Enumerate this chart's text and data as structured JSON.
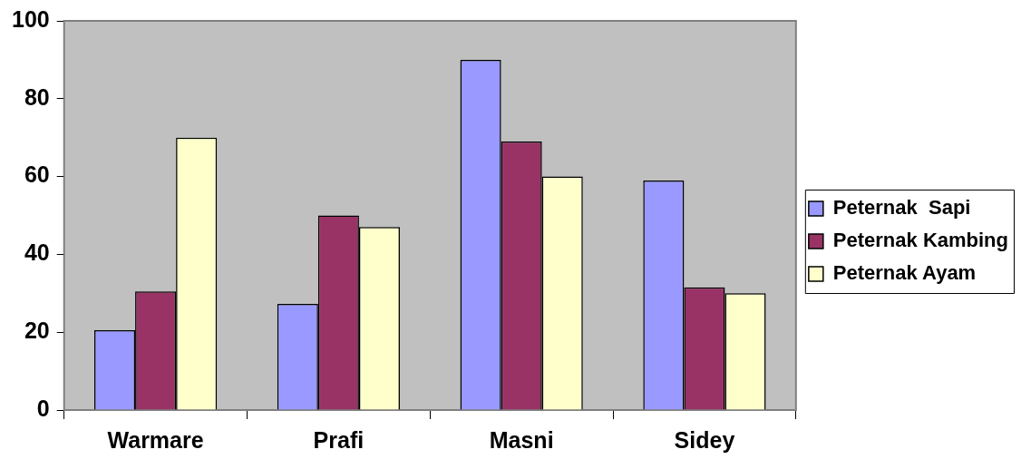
{
  "chart_data": {
    "type": "bar",
    "categories": [
      "Warmare",
      "Prafi",
      "Masni",
      "Sidey"
    ],
    "series": [
      {
        "name": "Peternak  Sapi",
        "color": "#9999ff",
        "values": [
          20.5,
          27.3,
          90,
          59
        ]
      },
      {
        "name": "Peternak Kambing",
        "color": "#993366",
        "values": [
          30.5,
          50,
          69,
          31.5
        ]
      },
      {
        "name": "Peternak Ayam",
        "color": "#ffffcc",
        "values": [
          70,
          47,
          60,
          30
        ]
      }
    ],
    "ylim": [
      0,
      100
    ],
    "yticks": [
      0,
      20,
      40,
      60,
      80,
      100
    ],
    "grid": false,
    "legend": "right"
  }
}
